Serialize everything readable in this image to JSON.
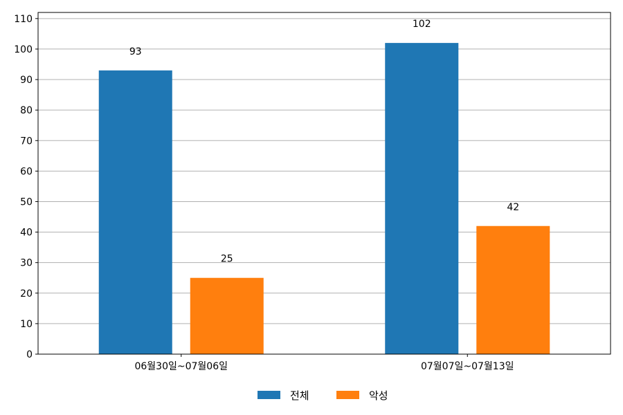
{
  "chart_data": {
    "type": "bar",
    "categories": [
      "06월30일~07월06일",
      "07월07일~07월13일"
    ],
    "series": [
      {
        "name": "전체",
        "values": [
          93,
          102
        ],
        "color": "#1f77b4"
      },
      {
        "name": "악성",
        "values": [
          25,
          42
        ],
        "color": "#ff7f0e"
      }
    ],
    "ylim": [
      0,
      112
    ],
    "yticks": [
      0,
      10,
      20,
      30,
      40,
      50,
      60,
      70,
      80,
      90,
      100,
      110
    ],
    "grid": true,
    "grid_color": "#b0b0b0",
    "legend_position": "bottom-center",
    "xlabel": "",
    "ylabel": "",
    "title": ""
  }
}
